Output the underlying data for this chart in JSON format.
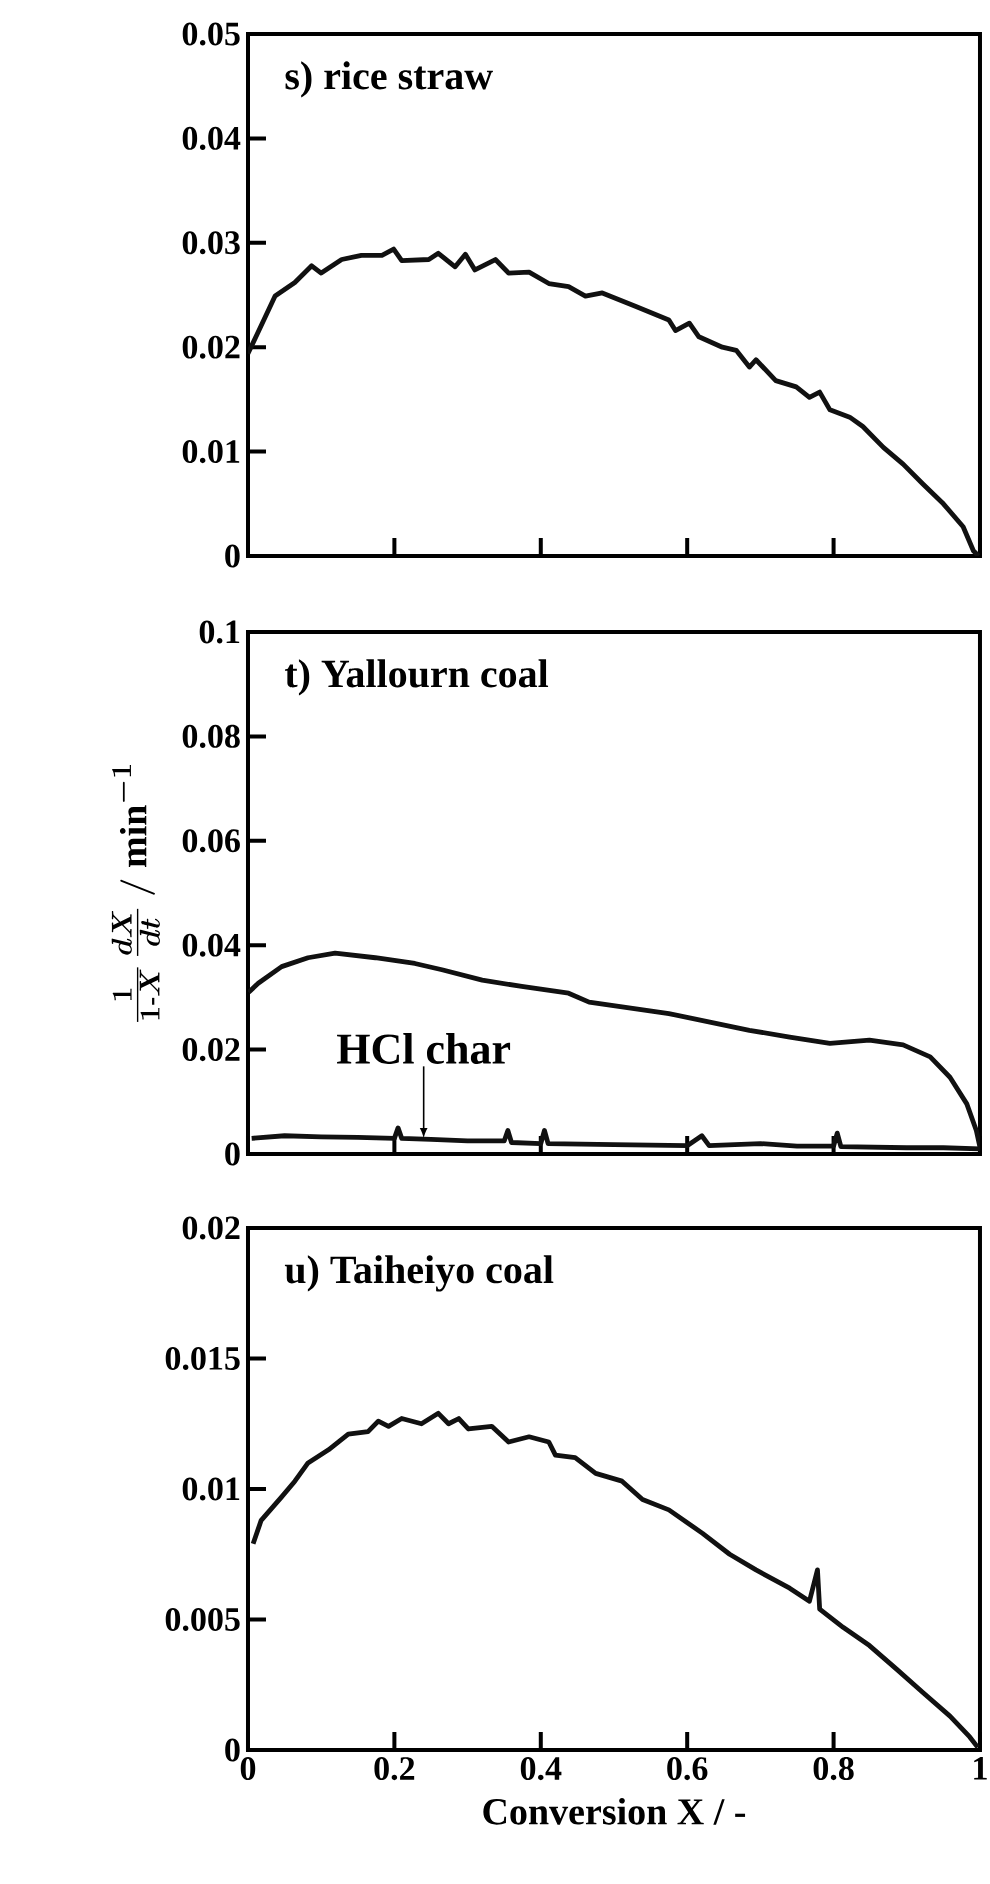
{
  "chart_data": [
    {
      "type": "line",
      "title": "s) rice straw",
      "xlim": [
        0,
        1
      ],
      "xticks": [
        0,
        0.2,
        0.4,
        0.6,
        0.8,
        1
      ],
      "ylim": [
        0,
        0.05
      ],
      "yticks": [
        0,
        0.01,
        0.02,
        0.03,
        0.04,
        0.05
      ],
      "tick_labels": "y",
      "series": [
        {
          "color": "#111111",
          "x": [
            0,
            0.037,
            0.064,
            0.087,
            0.1,
            0.128,
            0.155,
            0.183,
            0.199,
            0.21,
            0.247,
            0.26,
            0.283,
            0.297,
            0.31,
            0.338,
            0.356,
            0.384,
            0.411,
            0.438,
            0.461,
            0.484,
            0.53,
            0.575,
            0.584,
            0.603,
            0.616,
            0.648,
            0.667,
            0.685,
            0.694,
            0.721,
            0.749,
            0.767,
            0.781,
            0.795,
            0.822,
            0.84,
            0.868,
            0.895,
            0.922,
            0.95,
            0.977,
            0.991,
            0.998
          ],
          "values": [
            0.0194,
            0.0249,
            0.0262,
            0.0278,
            0.0271,
            0.0284,
            0.0288,
            0.0288,
            0.0294,
            0.0283,
            0.0284,
            0.029,
            0.0277,
            0.0289,
            0.0274,
            0.0284,
            0.0271,
            0.0272,
            0.0261,
            0.0258,
            0.0249,
            0.0252,
            0.0239,
            0.0226,
            0.0216,
            0.0223,
            0.021,
            0.02,
            0.0197,
            0.0181,
            0.0188,
            0.0168,
            0.0162,
            0.0152,
            0.0157,
            0.014,
            0.0133,
            0.0124,
            0.0104,
            0.0088,
            0.0069,
            0.005,
            0.0028,
            0.0005,
            0
          ]
        }
      ]
    },
    {
      "type": "line",
      "title": "t) Yallourn coal",
      "ylabel": "\\frac{1}{1\\text{-}X}\\,\\frac{dX}{dt}\\ /\\ \\mathrm{min}^{-1}",
      "xlim": [
        0,
        1
      ],
      "xticks": [
        0,
        0.2,
        0.4,
        0.6,
        0.8,
        1
      ],
      "ylim": [
        0,
        0.1
      ],
      "yticks": [
        0,
        0.02,
        0.04,
        0.06,
        0.08,
        0.1
      ],
      "tick_labels": "y",
      "annotations": [
        {
          "text": "HCl char",
          "x": 0.24,
          "y": 0.003
        }
      ],
      "series": [
        {
          "color": "#111111",
          "x": [
            0.001,
            0.014,
            0.046,
            0.082,
            0.119,
            0.174,
            0.228,
            0.265,
            0.32,
            0.374,
            0.438,
            0.466,
            0.53,
            0.575,
            0.63,
            0.685,
            0.74,
            0.795,
            0.849,
            0.895,
            0.932,
            0.959,
            0.982,
            0.995,
            1.0
          ],
          "values": [
            0.031,
            0.0327,
            0.0359,
            0.0376,
            0.0385,
            0.0376,
            0.0365,
            0.0353,
            0.0333,
            0.0321,
            0.0308,
            0.0291,
            0.0278,
            0.0269,
            0.0253,
            0.0237,
            0.0224,
            0.0212,
            0.0218,
            0.0209,
            0.0186,
            0.0147,
            0.0096,
            0.0045,
            0.0013
          ]
        },
        {
          "color": "#111111",
          "x": [
            0.005,
            0.05,
            0.1,
            0.15,
            0.2,
            0.205,
            0.21,
            0.25,
            0.3,
            0.35,
            0.355,
            0.36,
            0.4,
            0.405,
            0.41,
            0.5,
            0.6,
            0.62,
            0.63,
            0.7,
            0.75,
            0.8,
            0.805,
            0.81,
            0.9,
            0.95,
            1.0
          ],
          "values": [
            0.003,
            0.0035,
            0.0033,
            0.0032,
            0.003,
            0.005,
            0.003,
            0.0028,
            0.0025,
            0.0025,
            0.0045,
            0.0022,
            0.002,
            0.0045,
            0.002,
            0.0018,
            0.0016,
            0.0035,
            0.0016,
            0.002,
            0.0015,
            0.0015,
            0.004,
            0.0014,
            0.0012,
            0.0012,
            0.001
          ]
        }
      ]
    },
    {
      "type": "line",
      "title": "u) Taiheiyo coal",
      "xlabel": "Conversion X / -",
      "xlim": [
        0,
        1
      ],
      "xticks": [
        0,
        0.2,
        0.4,
        0.6,
        0.8,
        1
      ],
      "ylim": [
        0,
        0.02
      ],
      "yticks": [
        0,
        0.005,
        0.01,
        0.015,
        0.02
      ],
      "series": [
        {
          "color": "#111111",
          "x": [
            0.007,
            0.018,
            0.046,
            0.064,
            0.082,
            0.11,
            0.137,
            0.164,
            0.178,
            0.192,
            0.21,
            0.237,
            0.26,
            0.274,
            0.288,
            0.301,
            0.333,
            0.356,
            0.384,
            0.411,
            0.42,
            0.447,
            0.475,
            0.511,
            0.539,
            0.575,
            0.621,
            0.658,
            0.694,
            0.74,
            0.767,
            0.778,
            0.781,
            0.813,
            0.849,
            0.886,
            0.922,
            0.959,
            0.986,
            0.997
          ],
          "values": [
            0.0079,
            0.0088,
            0.0097,
            0.0103,
            0.011,
            0.0115,
            0.0121,
            0.0122,
            0.0126,
            0.0124,
            0.0127,
            0.0125,
            0.0129,
            0.0125,
            0.0127,
            0.0123,
            0.0124,
            0.0118,
            0.012,
            0.0118,
            0.0113,
            0.0112,
            0.0106,
            0.0103,
            0.0096,
            0.0092,
            0.0083,
            0.0075,
            0.0069,
            0.0062,
            0.0057,
            0.0069,
            0.0054,
            0.0047,
            0.004,
            0.0031,
            0.0022,
            0.0013,
            0.0005,
            0.0001
          ]
        }
      ]
    }
  ]
}
